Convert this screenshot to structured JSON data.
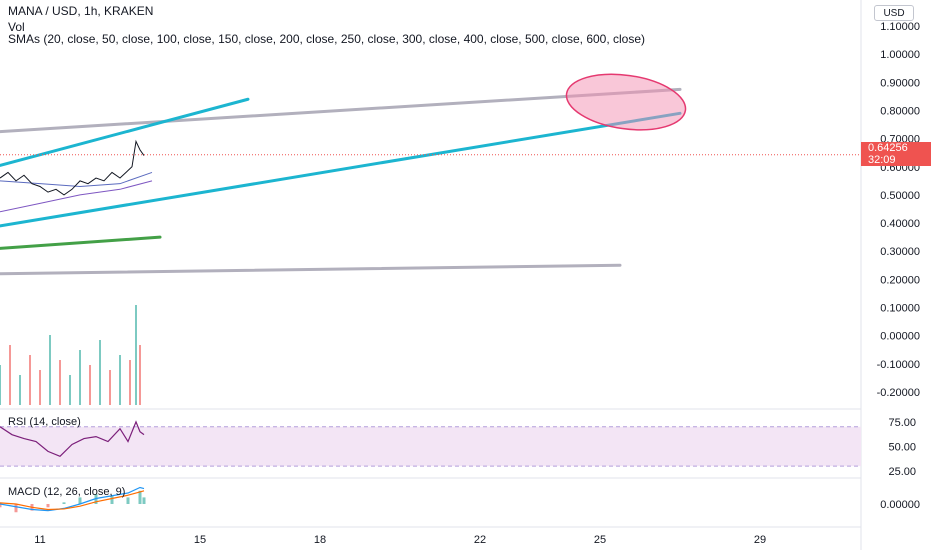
{
  "header": {
    "symbol": "MANA / USD, 1h, KRAKEN",
    "vol_label": "Vol",
    "sma_label": "SMAs (20, close, 50, close, 100, close, 150, close, 200, close, 250, close, 300, close, 400, close, 500, close, 600, close)"
  },
  "currency_button": "USD",
  "last_price": {
    "value": "0.64256",
    "countdown": "32:09"
  },
  "rsi_label": "RSI (14, close)",
  "macd_label": "MACD (12, 26, close, 9)",
  "colors": {
    "up": "#26a69a",
    "down": "#ef5350",
    "trendline_cyan": "#1cb5d0",
    "trendline_gray": "#b2b0bd",
    "trendline_green": "#43a047",
    "ellipse": "#f48fb1",
    "rsi_line": "#7b1f7a",
    "rsi_band": "#f3e5f5",
    "macd_line": "#2196f3",
    "signal_line": "#ff6d00"
  },
  "chart_data": {
    "type": "line",
    "price_axis": {
      "ticks": [
        "1.10000",
        "1.00000",
        "0.90000",
        "0.80000",
        "0.70000",
        "0.60000",
        "0.50000",
        "0.40000",
        "0.30000",
        "0.20000",
        "0.10000",
        "0.00000",
        "-0.10000",
        "-0.20000"
      ],
      "tick_values": [
        1.1,
        1.0,
        0.9,
        0.8,
        0.7,
        0.6,
        0.5,
        0.4,
        0.3,
        0.2,
        0.1,
        0.0,
        -0.1,
        -0.2
      ],
      "range": [
        -0.25,
        1.15
      ]
    },
    "x_axis": {
      "ticks": [
        "11",
        "15",
        "18",
        "22",
        "25",
        "29"
      ],
      "tick_values": [
        11,
        15,
        18,
        22,
        25,
        29
      ],
      "range": [
        10,
        30
      ]
    },
    "price_series": {
      "name": "MANA / USD",
      "x": [
        10.0,
        10.2,
        10.4,
        10.6,
        10.8,
        11.0,
        11.2,
        11.4,
        11.6,
        11.8,
        12.0,
        12.2,
        12.4,
        12.6,
        12.8,
        13.0,
        13.3,
        13.4,
        13.5,
        13.6
      ],
      "y": [
        0.56,
        0.58,
        0.55,
        0.57,
        0.54,
        0.53,
        0.51,
        0.52,
        0.5,
        0.52,
        0.55,
        0.54,
        0.56,
        0.55,
        0.58,
        0.56,
        0.6,
        0.69,
        0.66,
        0.64
      ]
    },
    "sma_series": [
      {
        "x": [
          10.0,
          11.0,
          12.0,
          13.0,
          13.8
        ],
        "y": [
          0.55,
          0.54,
          0.53,
          0.54,
          0.58
        ]
      },
      {
        "x": [
          10.0,
          11.0,
          12.0,
          13.0,
          13.8
        ],
        "y": [
          0.44,
          0.47,
          0.5,
          0.52,
          0.55
        ]
      }
    ],
    "trendlines": [
      {
        "color": "gray",
        "x": [
          10.0,
          27.0
        ],
        "y": [
          0.725,
          0.875
        ]
      },
      {
        "color": "gray",
        "x": [
          10.0,
          25.5
        ],
        "y": [
          0.22,
          0.25
        ]
      },
      {
        "color": "cyan",
        "x": [
          10.0,
          16.2
        ],
        "y": [
          0.605,
          0.84
        ]
      },
      {
        "color": "cyan",
        "x": [
          10.0,
          27.0
        ],
        "y": [
          0.39,
          0.79
        ]
      },
      {
        "color": "green",
        "x": [
          10.0,
          14.0
        ],
        "y": [
          0.31,
          0.35
        ]
      }
    ],
    "highlight_ellipse": {
      "x_center": 25.65,
      "y_center": 0.83,
      "x_radius": 1.5,
      "y_radius": 0.095
    },
    "last_price": 0.64256,
    "volume": {
      "x": [
        10.0,
        10.25,
        10.5,
        10.75,
        11.0,
        11.25,
        11.5,
        11.75,
        12.0,
        12.25,
        12.5,
        12.75,
        13.0,
        13.25,
        13.4,
        13.5
      ],
      "values": [
        0.4,
        0.6,
        0.3,
        0.5,
        0.35,
        0.7,
        0.45,
        0.3,
        0.55,
        0.4,
        0.65,
        0.35,
        0.5,
        0.45,
        1.0,
        0.6
      ],
      "up": [
        true,
        false,
        true,
        false,
        false,
        true,
        false,
        true,
        true,
        false,
        true,
        false,
        true,
        false,
        true,
        false
      ]
    },
    "rsi": {
      "ticks": [
        "75.00",
        "50.00",
        "25.00"
      ],
      "tick_values": [
        75,
        50,
        25
      ],
      "band": [
        30,
        70
      ],
      "x": [
        10.0,
        10.3,
        10.6,
        10.9,
        11.2,
        11.5,
        11.8,
        12.1,
        12.4,
        12.7,
        13.0,
        13.2,
        13.4,
        13.5,
        13.6
      ],
      "y": [
        70,
        62,
        58,
        55,
        45,
        40,
        52,
        58,
        60,
        55,
        68,
        55,
        75,
        65,
        62
      ]
    },
    "macd": {
      "ticks": [
        "0.00000"
      ],
      "tick_values": [
        0
      ],
      "range": [
        -0.04,
        0.04
      ],
      "x": [
        10.0,
        10.4,
        10.8,
        11.2,
        11.6,
        12.0,
        12.4,
        12.8,
        13.2,
        13.5,
        13.6
      ],
      "macd": [
        0.0,
        -0.005,
        -0.01,
        -0.012,
        -0.008,
        0.0,
        0.01,
        0.015,
        0.02,
        0.03,
        0.028
      ],
      "signal": [
        0.002,
        0.0,
        -0.006,
        -0.01,
        -0.009,
        -0.004,
        0.004,
        0.01,
        0.016,
        0.022,
        0.024
      ]
    }
  }
}
